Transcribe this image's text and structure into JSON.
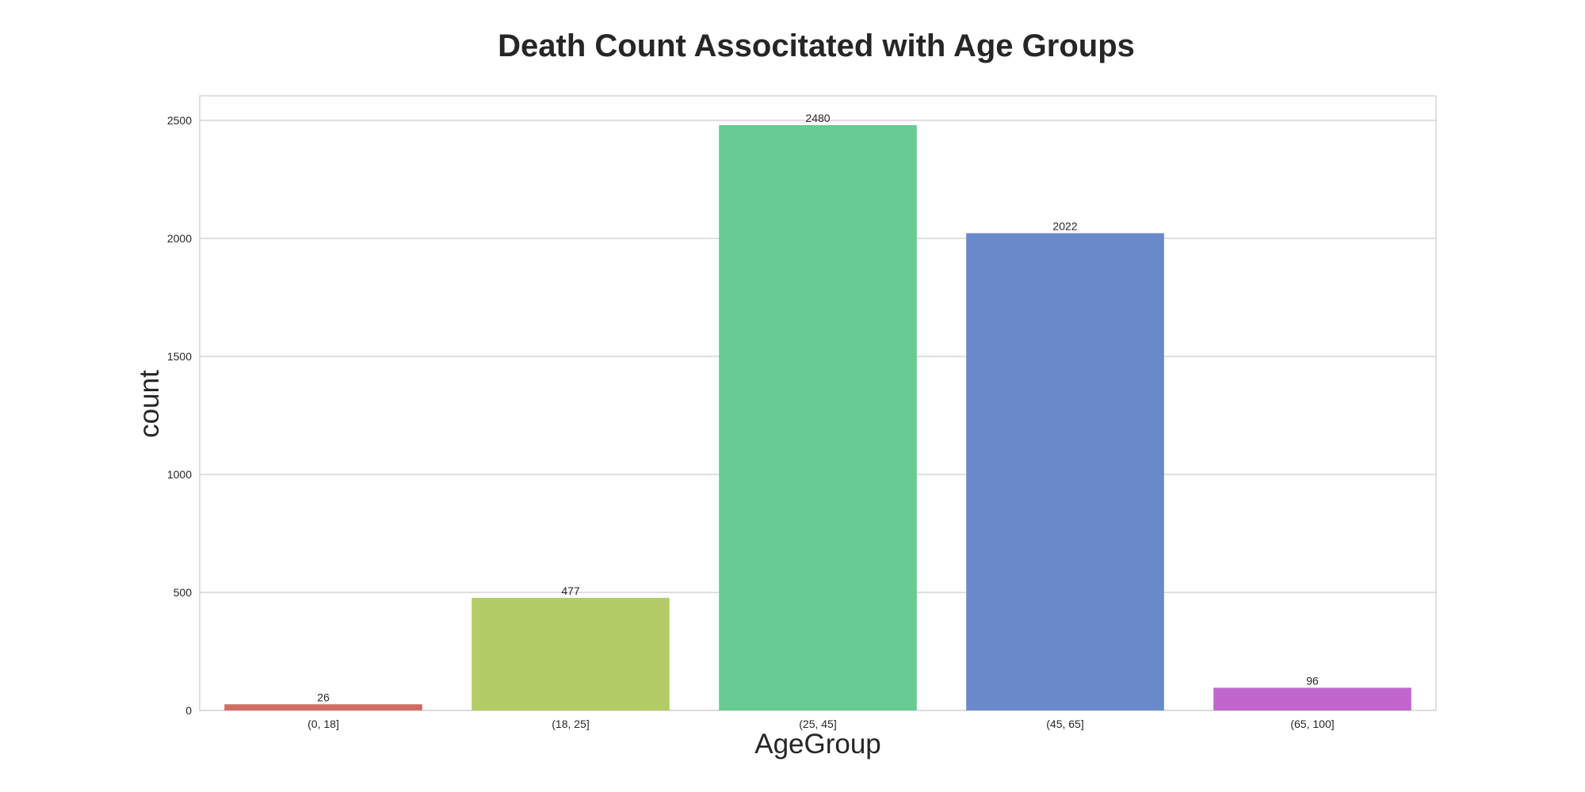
{
  "chart_data": {
    "type": "bar",
    "title": "Death Count Associtated with Age Groups",
    "xlabel": "AgeGroup",
    "ylabel": "count",
    "categories": [
      "(0, 18]",
      "(18, 25]",
      "(25, 45]",
      "(45, 65]",
      "(65, 100]"
    ],
    "values": [
      26,
      477,
      2480,
      2022,
      96
    ],
    "data_labels": [
      "26",
      "477",
      "2480",
      "2022",
      "96"
    ],
    "bar_colors": [
      "#d06c62",
      "#b3cc67",
      "#67cb93",
      "#6989cb",
      "#c066cc"
    ],
    "yticks": [
      0,
      500,
      1000,
      1500,
      2000,
      2500
    ],
    "ylim": [
      0,
      2604
    ],
    "grid": true,
    "legend": "none"
  }
}
